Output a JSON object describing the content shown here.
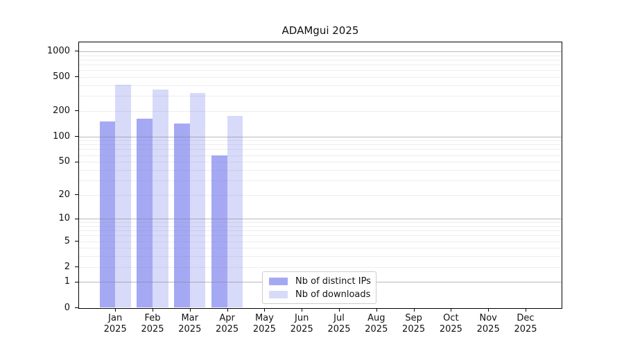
{
  "title": "ADAMgui 2025",
  "chart_data": {
    "type": "bar",
    "title": "ADAMgui 2025",
    "categories": [
      "Jan",
      "Feb",
      "Mar",
      "Apr",
      "May",
      "Jun",
      "Jul",
      "Aug",
      "Sep",
      "Oct",
      "Nov",
      "Dec"
    ],
    "year_label": "2025",
    "series": [
      {
        "name": "Nb of distinct IPs",
        "color": "#a5a9f4",
        "values": [
          149,
          161,
          143,
          60,
          0,
          0,
          0,
          0,
          0,
          0,
          0,
          0
        ]
      },
      {
        "name": "Nb of downloads",
        "color": "#d8dafa",
        "values": [
          410,
          358,
          327,
          175,
          0,
          0,
          0,
          0,
          0,
          0,
          0,
          0
        ]
      }
    ],
    "y_axis": {
      "scale": "log1p",
      "tick_values": [
        1000,
        500,
        200,
        100,
        50,
        20,
        10,
        5,
        2,
        1,
        0
      ],
      "tick_labels": [
        "1000",
        "500",
        "200",
        "100",
        "50",
        "20",
        "10",
        "5",
        "2",
        "1",
        "0"
      ],
      "ylim": [
        0,
        1285
      ],
      "major_gridlines": [
        1,
        10,
        100,
        1000
      ],
      "minor_gridline_mantissas": [
        2,
        3,
        4,
        5,
        6,
        7,
        8,
        9
      ]
    },
    "legend": {
      "position": "bottom-center",
      "entries": [
        "Nb of distinct IPs",
        "Nb of downloads"
      ]
    },
    "colors": {
      "major_grid": "rgba(128,128,128,0.55)",
      "minor_grid": "rgba(128,128,128,0.14)",
      "axis": "#000000",
      "text": "#111111",
      "background": "#ffffff"
    }
  }
}
